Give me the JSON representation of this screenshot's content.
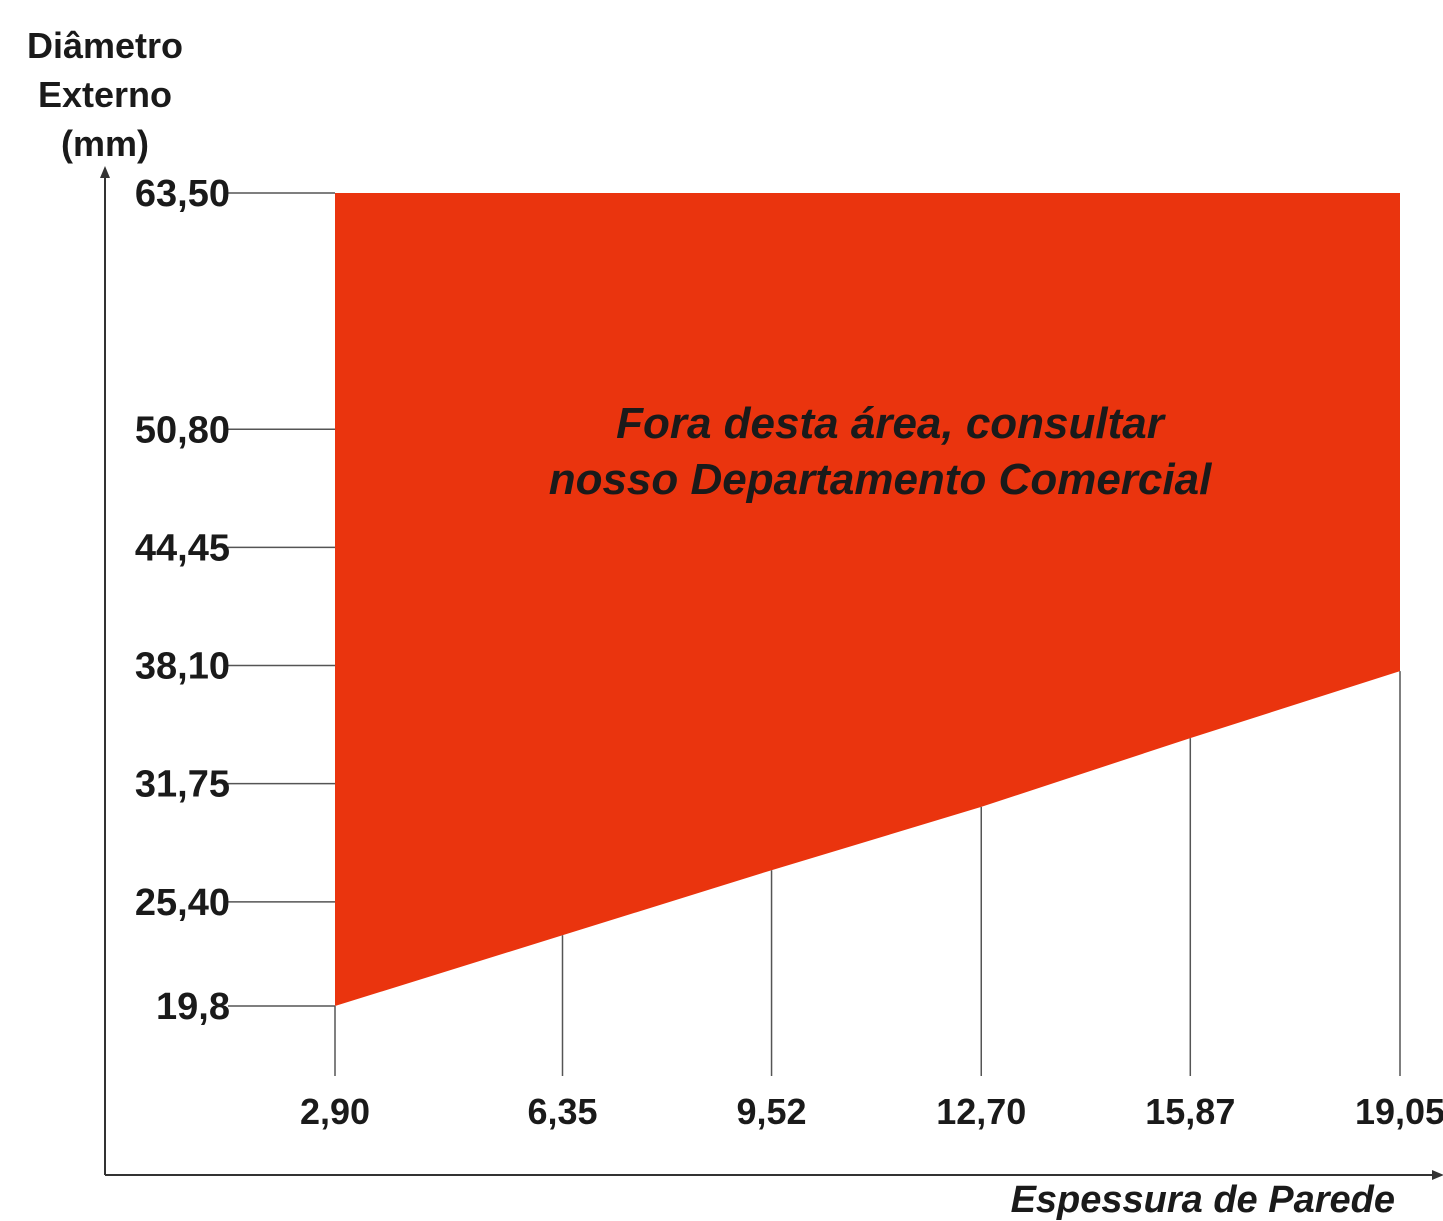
{
  "chart_data": {
    "type": "area",
    "ylabel": [
      "Diâmetro",
      "Externo",
      "(mm)"
    ],
    "xlabel": "Espessura de Parede",
    "annotation": [
      "Fora desta área, consultar",
      "nosso Departamento Comercial"
    ],
    "y_ticks": [
      {
        "value": 63.5,
        "label": "63,50"
      },
      {
        "value": 50.8,
        "label": "50,80"
      },
      {
        "value": 44.45,
        "label": "44,45"
      },
      {
        "value": 38.1,
        "label": "38,10"
      },
      {
        "value": 31.75,
        "label": "31,75"
      },
      {
        "value": 25.4,
        "label": "25,40"
      },
      {
        "value": 19.8,
        "label": "19,8"
      }
    ],
    "x_ticks": [
      {
        "value": 2.9,
        "label": "2,90"
      },
      {
        "value": 6.35,
        "label": "6,35"
      },
      {
        "value": 9.52,
        "label": "9,52"
      },
      {
        "value": 12.7,
        "label": "12,70"
      },
      {
        "value": 15.87,
        "label": "15,87"
      },
      {
        "value": 19.05,
        "label": "19,05"
      }
    ],
    "region": {
      "upper": 63.5,
      "lower_boundary": [
        {
          "x": 2.9,
          "y": 19.8
        },
        {
          "x": 6.35,
          "y": 23.6
        },
        {
          "x": 9.52,
          "y": 27.1
        },
        {
          "x": 12.7,
          "y": 30.5
        },
        {
          "x": 15.87,
          "y": 34.2
        },
        {
          "x": 19.05,
          "y": 37.8
        }
      ]
    },
    "fill_color": "#ea340e"
  }
}
